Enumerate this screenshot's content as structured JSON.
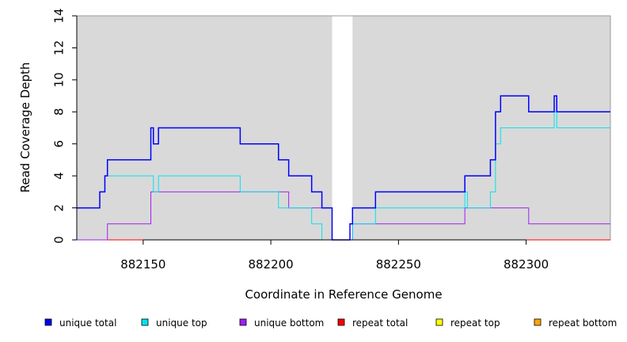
{
  "chart_data": {
    "type": "line",
    "line_style": "step",
    "xlabel": "Coordinate in Reference Genome",
    "ylabel": "Read Coverage Depth",
    "xlim": [
      882124,
      882333
    ],
    "ylim": [
      0,
      14
    ],
    "xticks": [
      882150,
      882200,
      882250,
      882300
    ],
    "yticks": [
      0,
      2,
      4,
      6,
      8,
      10,
      12,
      14
    ],
    "background": "#d9d9d9",
    "grid": false,
    "legend_position": "bottom",
    "gap_region": [
      882224,
      882232
    ],
    "gap_color": "#ffffff",
    "series": [
      {
        "name": "unique total",
        "color": "#0000ff",
        "points": [
          [
            882124,
            2
          ],
          [
            882133,
            3
          ],
          [
            882135,
            4
          ],
          [
            882136,
            5
          ],
          [
            882153,
            7
          ],
          [
            882154,
            6
          ],
          [
            882156,
            7
          ],
          [
            882188,
            6
          ],
          [
            882203,
            5
          ],
          [
            882207,
            4
          ],
          [
            882216,
            3
          ],
          [
            882220,
            2
          ],
          [
            882224,
            0
          ],
          [
            882231,
            1
          ],
          [
            882232,
            2
          ],
          [
            882241,
            3
          ],
          [
            882276,
            4
          ],
          [
            882286,
            5
          ],
          [
            882288,
            8
          ],
          [
            882290,
            9
          ],
          [
            882301,
            8
          ],
          [
            882311,
            9
          ],
          [
            882312,
            8
          ],
          [
            882333,
            8
          ]
        ]
      },
      {
        "name": "unique top",
        "color": "#00e5ee",
        "points": [
          [
            882124,
            2
          ],
          [
            882133,
            3
          ],
          [
            882135,
            4
          ],
          [
            882154,
            3
          ],
          [
            882156,
            4
          ],
          [
            882188,
            3
          ],
          [
            882203,
            2
          ],
          [
            882216,
            1
          ],
          [
            882220,
            0
          ],
          [
            882224,
            0
          ],
          [
            882232,
            1
          ],
          [
            882241,
            2
          ],
          [
            882276,
            3
          ],
          [
            882277,
            2
          ],
          [
            882286,
            3
          ],
          [
            882288,
            6
          ],
          [
            882290,
            7
          ],
          [
            882311,
            8
          ],
          [
            882312,
            7
          ],
          [
            882333,
            7
          ]
        ]
      },
      {
        "name": "unique bottom",
        "color": "#a020f0",
        "points": [
          [
            882124,
            0
          ],
          [
            882136,
            1
          ],
          [
            882153,
            3
          ],
          [
            882207,
            2
          ],
          [
            882224,
            0
          ],
          [
            882232,
            1
          ],
          [
            882276,
            2
          ],
          [
            882301,
            1
          ],
          [
            882333,
            1
          ]
        ]
      },
      {
        "name": "repeat total",
        "color": "#ff0000",
        "points": [
          [
            882124,
            0
          ],
          [
            882333,
            0
          ]
        ]
      },
      {
        "name": "repeat top",
        "color": "#ffff00",
        "points": [
          [
            882124,
            0
          ],
          [
            882333,
            0
          ]
        ]
      },
      {
        "name": "repeat bottom",
        "color": "#ffa500",
        "points": [
          [
            882124,
            0
          ],
          [
            882333,
            0
          ]
        ]
      }
    ]
  }
}
